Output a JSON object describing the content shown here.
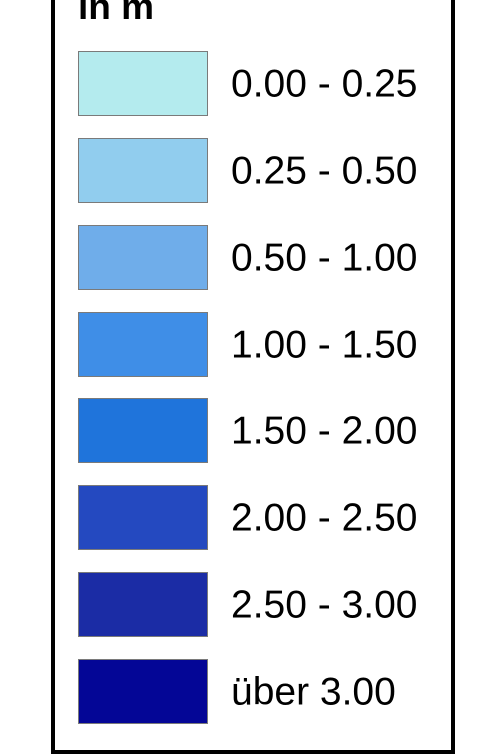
{
  "legend": {
    "heading": "in m",
    "items": [
      {
        "label": "0.00 - 0.25",
        "color": "#b4ebee"
      },
      {
        "label": "0.25 - 0.50",
        "color": "#91cdee"
      },
      {
        "label": "0.50 - 1.00",
        "color": "#6fadea"
      },
      {
        "label": "1.00 - 1.50",
        "color": "#3f8ee7"
      },
      {
        "label": "1.50 - 2.00",
        "color": "#1f74db"
      },
      {
        "label": "2.00 - 2.50",
        "color": "#2449c0"
      },
      {
        "label": "2.50 - 3.00",
        "color": "#1b2ca5"
      },
      {
        "label": "über 3.00",
        "color": "#040696"
      }
    ]
  }
}
